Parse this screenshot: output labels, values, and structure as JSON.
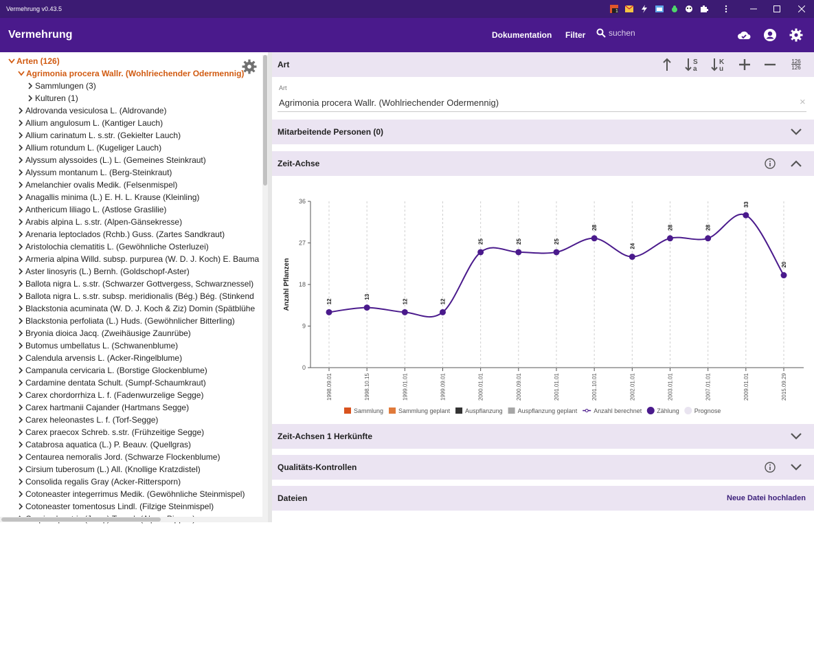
{
  "titlebar": {
    "title": "Vermehrung v0.43.5",
    "badge": "1"
  },
  "appbar": {
    "brand": "Vermehrung",
    "nav_docs": "Dokumentation",
    "nav_filter": "Filter",
    "search_placeholder": "suchen"
  },
  "tree": {
    "root_label": "Arten (126)",
    "active_label": "Agrimonia procera Wallr. (Wohlriechender Odermennig)",
    "children": [
      "Sammlungen (3)",
      "Kulturen (1)"
    ],
    "items": [
      "Aldrovanda vesiculosa L. (Aldrovande)",
      "Allium angulosum L. (Kantiger Lauch)",
      "Allium carinatum L. s.str. (Gekielter Lauch)",
      "Allium rotundum L. (Kugeliger Lauch)",
      "Alyssum alyssoides (L.) L. (Gemeines Steinkraut)",
      "Alyssum montanum L. (Berg-Steinkraut)",
      "Amelanchier ovalis Medik. (Felsenmispel)",
      "Anagallis minima (L.) E. H. L. Krause (Kleinling)",
      "Anthericum liliago L. (Astlose Graslilie)",
      "Arabis alpina L. s.str. (Alpen-Gänsekresse)",
      "Arenaria leptoclados (Rchb.) Guss. (Zartes Sandkraut)",
      "Aristolochia clematitis L. (Gewöhnliche Osterluzei)",
      "Armeria alpina Willd. subsp. purpurea (W. D. J. Koch) E. Bauma",
      "Aster linosyris (L.) Bernh. (Goldschopf-Aster)",
      "Ballota nigra L. s.str. (Schwarzer Gottvergess, Schwarznessel)",
      "Ballota nigra L. s.str. subsp. meridionalis (Bég.) Bég. (Stinkend",
      "Blackstonia acuminata (W. D. J. Koch & Ziz) Domin (Spätblühe",
      "Blackstonia perfoliata (L.) Huds. (Gewöhnlicher Bitterling)",
      "Bryonia dioica Jacq. (Zweihäusige Zaunrübe)",
      "Butomus umbellatus L. (Schwanenblume)",
      "Calendula arvensis L. (Acker-Ringelblume)",
      "Campanula cervicaria L. (Borstige Glockenblume)",
      "Cardamine dentata Schult. (Sumpf-Schaumkraut)",
      "Carex chordorrhiza L. f. (Fadenwurzelige Segge)",
      "Carex hartmanii Cajander (Hartmans Segge)",
      "Carex heleonastes L. f. (Torf-Segge)",
      "Carex praecox Schreb. s.str. (Frühzeitige Segge)",
      "Catabrosa aquatica (L.) P. Beauv. (Quellgras)",
      "Centaurea nemoralis Jord. (Schwarze Flockenblume)",
      "Cirsium tuberosum (L.) All. (Knollige Kratzdistel)",
      "Consolida regalis Gray (Acker-Rittersporn)",
      "Cotoneaster integerrimus Medik. (Gewöhnliche Steinmispel)",
      "Cotoneaster tomentosus Lindl. (Filzige Steinmispel)",
      "Crepis alpestris (Jacq.) Tausch (Alpen-Pippau)"
    ]
  },
  "art": {
    "header": "Art",
    "counter_top": "126",
    "counter_bottom": "126",
    "field_label": "Art",
    "field_value": "Agrimonia procera Wallr. (Wohlriechender Odermennig)",
    "clear_icon": "×"
  },
  "sections": {
    "personen": "Mitarbeitende Personen (0)",
    "zeitachse": "Zeit-Achse",
    "herkuenfte": "Zeit-Achsen 1 Herkünfte",
    "qk": "Qualitäts-Kontrollen",
    "dateien": "Dateien",
    "upload": "Neue Datei hochladen"
  },
  "colors": {
    "appbar": "#4a1a8c",
    "titlebar": "#3c1b73",
    "accent": "#4a1a8c",
    "active_tree": "#d15b12",
    "section_bg": "#ebe4f2"
  },
  "chart_data": {
    "type": "line",
    "ylabel": "Anzahl Pflanzen",
    "ylim": [
      0,
      36
    ],
    "yticks": [
      0,
      9,
      18,
      27,
      36
    ],
    "categories": [
      "1998.09.01",
      "1998.10.15",
      "1999.01.01",
      "1999.09.01",
      "2000.01.01",
      "2000.09.01",
      "2001.01.01",
      "2001.10.01",
      "2002.01.01",
      "2003.01.01",
      "2007.01.01",
      "2009.01.01",
      "2015.09.29"
    ],
    "series": [
      {
        "name": "Zählung",
        "values": [
          12,
          13,
          12,
          12,
          25,
          25,
          25,
          28,
          24,
          28,
          28,
          33,
          20
        ]
      }
    ],
    "data_labels": [
      "12",
      "13",
      "12",
      "12",
      "25",
      "25",
      "25",
      "28",
      "24",
      "28",
      "28",
      "33",
      "20"
    ],
    "legend": [
      {
        "name": "Sammlung",
        "color": "#d9531e",
        "kind": "rect"
      },
      {
        "name": "Sammlung geplant",
        "color": "#e07a3a",
        "kind": "rect"
      },
      {
        "name": "Auspflanzung",
        "color": "#333333",
        "kind": "rect"
      },
      {
        "name": "Auspflanzung geplant",
        "color": "#a6a6a6",
        "kind": "rect"
      },
      {
        "name": "Anzahl berechnet",
        "color": "#4a1a8c",
        "kind": "line"
      },
      {
        "name": "Zählung",
        "color": "#4a1a8c",
        "kind": "dot"
      },
      {
        "name": "Prognose",
        "color": "#e9e4f0",
        "kind": "dot"
      }
    ],
    "legend_position": "bottom",
    "grid": "vertical dashed"
  }
}
